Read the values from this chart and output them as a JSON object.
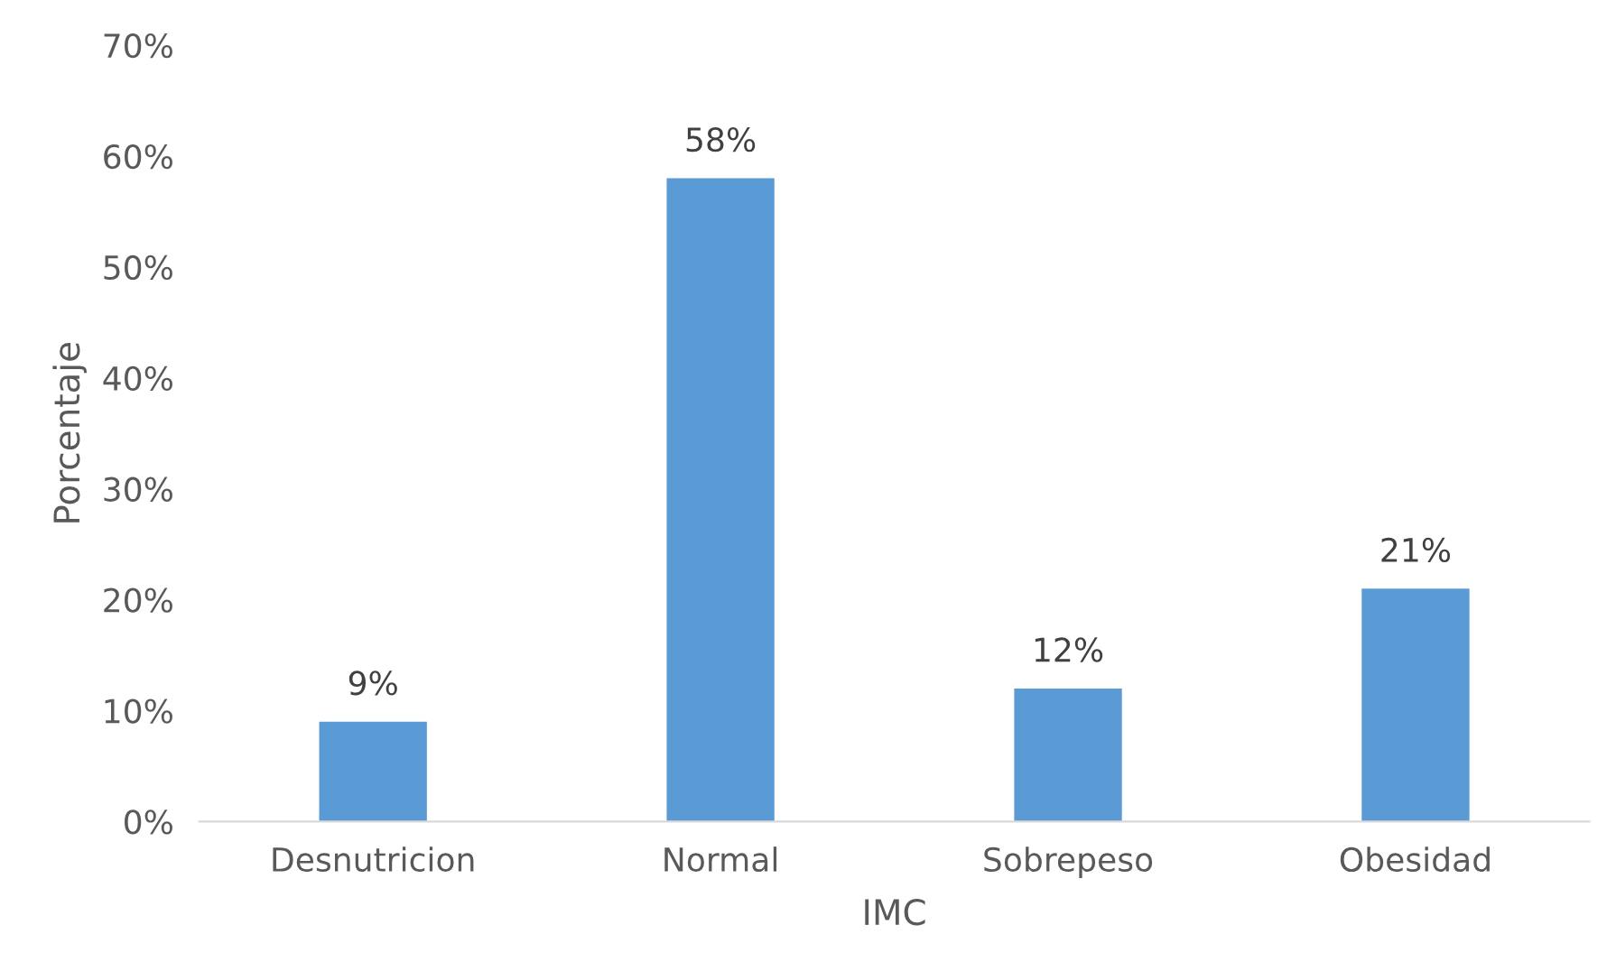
{
  "chart_data": {
    "type": "bar",
    "xlabel": "IMC",
    "ylabel": "Porcentaje",
    "categories": [
      "Desnutricion",
      "Normal",
      "Sobrepeso",
      "Obesidad"
    ],
    "values": [
      9,
      58,
      12,
      21
    ],
    "color": "#5b9bd5",
    "value_labels": [
      "9%",
      "58%",
      "12%",
      "21%"
    ],
    "ylim": [
      0,
      70
    ],
    "yticks": [
      {
        "value": 0,
        "label": "0%"
      },
      {
        "value": 10,
        "label": "10%"
      },
      {
        "value": 20,
        "label": "20%"
      },
      {
        "value": 30,
        "label": "30%"
      },
      {
        "value": 40,
        "label": "40%"
      },
      {
        "value": 50,
        "label": "50%"
      },
      {
        "value": 60,
        "label": "60%"
      },
      {
        "value": 70,
        "label": "70%"
      }
    ],
    "grid": false
  }
}
